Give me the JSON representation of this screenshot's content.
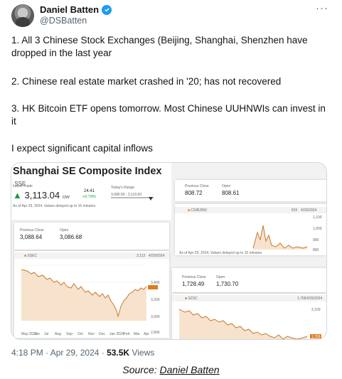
{
  "author": {
    "name": "Daniel Batten",
    "handle": "@DSBatten"
  },
  "menu": {
    "icon": "more-horizontal-icon"
  },
  "paragraphs": {
    "p1": "1. All 3 Chinese Stock Exchanges (Beijing, Shanghai, Shenzhen have dropped in the last year",
    "p2": "2. Chinese real estate market crashed in '20; has not recovered",
    "p3": "3. HK Bitcoin ETF opens tomorrow. Most Chinese UUHNWIs can invest in it",
    "p4": "I expect significant capital inflows"
  },
  "media": {
    "main": {
      "title": "Shanghai SE Composite Index",
      "ticker": ".SSE",
      "latest_label": "Latest Trade",
      "price": "3,113.04",
      "currency": "CNY",
      "change": "24.41",
      "change_pct": "+0.79%",
      "range_label": "Today's Range",
      "range": "3,080.59 - 3,119.69",
      "asof": "As of Apr 29, 2024. Values delayed up to 15 minutes",
      "prev_close_label": "Previous Close",
      "prev_close": "3,088.64",
      "open_label": "Open",
      "open": "3,086.68",
      "chart_tag": "SSEC",
      "chart_last": "3,113",
      "chart_date": "4/29/2024",
      "y_ticks": [
        "3,400",
        "3,200",
        "3,113",
        "3,000",
        "2,800"
      ],
      "x_ticks": [
        "May 2023",
        "Jun",
        "Jul",
        "Aug",
        "Sep",
        "Oct",
        "Nov",
        "Dec",
        "Jan 2024",
        "Feb",
        "Mar",
        "Apr"
      ]
    },
    "upper": {
      "prev_close_label": "Previous Close",
      "prev_close": "808.72",
      "open_label": "Open",
      "open": "808.61",
      "chart_tag": "CSIBJ050",
      "chart_last": "815",
      "chart_date": "4/29/2024",
      "y_ticks": [
        "1,100",
        "1,000",
        "900",
        "800"
      ],
      "asof": "As of Apr 29, 2024. Values delayed up to 15 minutes"
    },
    "lower": {
      "prev_close_label": "Previous Close",
      "prev_close": "1,728.49",
      "open_label": "Open",
      "open": "1,730.70",
      "chart_tag": "SZSC",
      "chart_last": "1,768",
      "chart_date": "4/29/2024",
      "y_ticks": [
        "2,100",
        "1,768"
      ]
    }
  },
  "footer": {
    "time": "4:18 PM · Apr 29, 2024 · ",
    "views": "53.5K",
    "views_label": " Views"
  },
  "source": {
    "prefix": "Source: ",
    "link": "Daniel Batten"
  }
}
